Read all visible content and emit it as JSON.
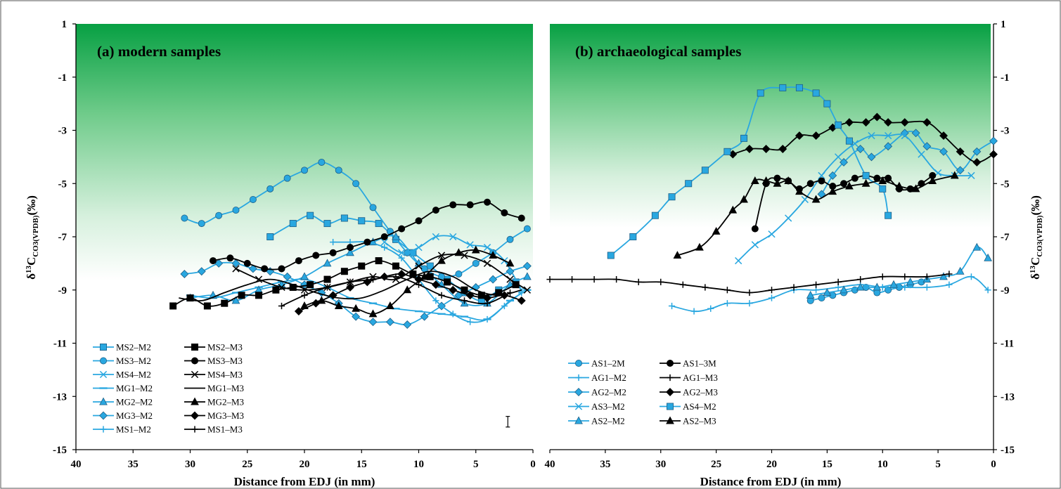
{
  "chart_data": [
    {
      "type": "line",
      "title": "(a) modern samples",
      "xlabel": "Distance from EDJ (in mm)",
      "ylabel": "δ13C CO3(VPDB)(‰)",
      "xlim": [
        40,
        0
      ],
      "ylim": [
        -15,
        1
      ],
      "x_ticks": [
        "40",
        "35",
        "30",
        "25",
        "20",
        "15",
        "10",
        "5",
        "0"
      ],
      "y_ticks": [
        "1",
        "-1",
        "-3",
        "-5",
        "-7",
        "-9",
        "-11",
        "-13",
        "-15"
      ],
      "error_bar": {
        "x": 2.2,
        "y_low": -14.15,
        "y_high": -13.75
      },
      "series": [
        {
          "name": "MS2–M2",
          "color": "#29a7e0",
          "marker": "square",
          "x": [
            23,
            21,
            19.5,
            18,
            16.5,
            15,
            13.5,
            12,
            10.5,
            9,
            7.5,
            6,
            4.5,
            3,
            1.5
          ],
          "y": [
            -7.0,
            -6.5,
            -6.2,
            -6.5,
            -6.3,
            -6.4,
            -6.5,
            -7.1,
            -7.6,
            -8.1,
            -8.6,
            -9.1,
            -9.4,
            -9.0,
            -8.7
          ]
        },
        {
          "name": "MS3–M2",
          "color": "#29a7e0",
          "marker": "circle",
          "x": [
            30.5,
            29,
            27.5,
            26,
            24.5,
            23,
            21.5,
            20,
            18.5,
            17,
            15.5,
            14,
            12.5,
            11,
            9.5,
            8,
            6.5,
            5,
            3.5,
            2,
            0.5
          ],
          "y": [
            -6.3,
            -6.5,
            -6.2,
            -6.0,
            -5.6,
            -5.2,
            -4.8,
            -4.5,
            -4.2,
            -4.5,
            -5.0,
            -5.9,
            -6.8,
            -7.6,
            -8.2,
            -8.5,
            -8.4,
            -8.0,
            -7.6,
            -7.1,
            -6.7
          ]
        },
        {
          "name": "MS4–M2",
          "color": "#29a7e0",
          "marker": "x",
          "x": [
            13,
            11.5,
            10,
            8.5,
            7,
            5.5,
            4,
            2.5,
            1
          ],
          "y": [
            -7.2,
            -7.6,
            -7.4,
            -7.0,
            -7.0,
            -7.3,
            -7.4,
            -7.9,
            -9.0
          ]
        },
        {
          "name": "MG1–M2",
          "color": "#29a7e0",
          "marker": "dash",
          "x": [
            30,
            28,
            26,
            24,
            22,
            20,
            18,
            16,
            14,
            12,
            10,
            8,
            6,
            4,
            2,
            0.5
          ],
          "y": [
            -9.2,
            -9.3,
            -9.1,
            -8.9,
            -8.7,
            -8.6,
            -8.9,
            -9.3,
            -9.5,
            -9.7,
            -9.8,
            -9.9,
            -10.0,
            -10.1,
            -9.4,
            -9.0
          ]
        },
        {
          "name": "MG2–M2",
          "color": "#29a7e0",
          "marker": "triangle",
          "x": [
            30,
            28,
            26,
            24,
            22,
            20,
            18,
            16,
            14,
            12,
            10,
            8,
            6,
            4,
            2,
            0.5
          ],
          "y": [
            -9.3,
            -9.2,
            -9.4,
            -9.0,
            -8.8,
            -8.5,
            -8.0,
            -7.6,
            -7.2,
            -7.0,
            -8.0,
            -8.8,
            -9.5,
            -9.5,
            -8.8,
            -8.5
          ]
        },
        {
          "name": "MG3–M2",
          "color": "#29a7e0",
          "marker": "diamond",
          "x": [
            30.5,
            29,
            27.5,
            26,
            24.5,
            23,
            21.5,
            20,
            18.5,
            17,
            15.5,
            14,
            12.5,
            11,
            9.5,
            8,
            6.5,
            5,
            3.5,
            2,
            0.5
          ],
          "y": [
            -8.4,
            -8.3,
            -8.0,
            -8.0,
            -8.2,
            -8.3,
            -8.5,
            -8.8,
            -9.1,
            -9.5,
            -10.0,
            -10.2,
            -10.2,
            -10.3,
            -10.0,
            -9.6,
            -9.2,
            -8.9,
            -8.6,
            -8.3,
            -8.1
          ]
        },
        {
          "name": "MS1–M2",
          "color": "#29a7e0",
          "marker": "plus",
          "x": [
            17.5,
            16,
            14.5,
            13,
            11.5,
            10,
            8.5,
            7,
            5.5,
            4,
            2.5,
            1
          ],
          "y": [
            -7.2,
            -7.2,
            -7.2,
            -7.4,
            -7.8,
            -8.6,
            -9.4,
            -9.9,
            -10.2,
            -10.1,
            -9.6,
            -9.1
          ]
        },
        {
          "name": "MS2–M3",
          "color": "#000000",
          "marker": "square",
          "x": [
            31.5,
            30,
            28.5,
            27,
            25.5,
            24,
            22.5,
            21,
            19.5,
            18,
            16.5,
            15,
            13.5,
            12,
            10.5,
            9,
            7.5,
            6,
            4.5,
            3,
            1.5
          ],
          "y": [
            -9.6,
            -9.3,
            -9.6,
            -9.5,
            -9.2,
            -9.2,
            -9.0,
            -8.9,
            -8.8,
            -8.6,
            -8.3,
            -8.1,
            -7.9,
            -8.1,
            -8.4,
            -8.5,
            -8.7,
            -9.0,
            -9.2,
            -9.1,
            -8.8
          ]
        },
        {
          "name": "MS3–M3",
          "color": "#000000",
          "marker": "circle",
          "x": [
            28,
            26.5,
            25,
            23.5,
            22,
            20.5,
            19,
            17.5,
            16,
            14.5,
            13,
            11.5,
            10,
            8.5,
            7,
            5.5,
            4,
            2.5,
            1
          ],
          "y": [
            -7.9,
            -7.8,
            -8.0,
            -8.2,
            -8.2,
            -7.9,
            -7.7,
            -7.6,
            -7.4,
            -7.2,
            -7.0,
            -6.7,
            -6.4,
            -6.0,
            -5.8,
            -5.8,
            -5.7,
            -6.1,
            -6.3
          ]
        },
        {
          "name": "MS4–M3",
          "color": "#000000",
          "marker": "x",
          "x": [
            26,
            24,
            22,
            20,
            18,
            16,
            14,
            12,
            10,
            8,
            6,
            4,
            2,
            0.5
          ],
          "y": [
            -8.2,
            -8.6,
            -8.9,
            -9.0,
            -8.9,
            -8.7,
            -8.5,
            -8.6,
            -8.1,
            -7.7,
            -7.7,
            -8.0,
            -8.6,
            -9.0
          ]
        },
        {
          "name": "MG1–M3",
          "color": "#000000",
          "marker": "none",
          "x": [
            31,
            29,
            27,
            25,
            23,
            21,
            19,
            17,
            15,
            13,
            11,
            9,
            7,
            5,
            3,
            1
          ],
          "y": [
            -9.3,
            -9.4,
            -9.1,
            -8.8,
            -8.6,
            -8.8,
            -9.1,
            -9.3,
            -9.3,
            -9.0,
            -8.6,
            -8.3,
            -8.5,
            -9.0,
            -9.2,
            -9.0
          ]
        },
        {
          "name": "MG2–M3",
          "color": "#000000",
          "marker": "triangle",
          "x": [
            20,
            18.5,
            17,
            15.5,
            14,
            12.5,
            11,
            9.5,
            8,
            6.5,
            5,
            3.5,
            2
          ],
          "y": [
            -9.6,
            -9.4,
            -9.6,
            -9.7,
            -9.9,
            -9.6,
            -9.0,
            -8.5,
            -7.9,
            -7.6,
            -7.5,
            -7.7,
            -8.0
          ]
        },
        {
          "name": "MG3–M3",
          "color": "#000000",
          "marker": "diamond",
          "x": [
            20.5,
            19,
            17.5,
            16,
            14.5,
            13,
            11.5,
            10,
            8.5,
            7,
            5.5,
            4,
            2.5,
            1
          ],
          "y": [
            -9.8,
            -9.5,
            -9.2,
            -8.9,
            -8.7,
            -8.5,
            -8.4,
            -8.6,
            -8.8,
            -9.0,
            -9.2,
            -9.3,
            -9.2,
            -9.4
          ]
        },
        {
          "name": "MS1–M3",
          "color": "#000000",
          "marker": "plus",
          "x": [
            22,
            20,
            18,
            16,
            14,
            12,
            10,
            8,
            6,
            4,
            2
          ],
          "y": [
            -9.6,
            -9.2,
            -8.9,
            -8.7,
            -8.6,
            -8.5,
            -8.8,
            -9.2,
            -9.4,
            -9.5,
            -9.1
          ]
        }
      ]
    },
    {
      "type": "line",
      "title": "(b) archaeological samples",
      "xlabel": "Distance from EDJ (in mm)",
      "ylabel": "δ13C CO3(VPDB)(‰)",
      "xlim": [
        40,
        0
      ],
      "ylim": [
        -15,
        1
      ],
      "x_ticks": [
        "40",
        "35",
        "30",
        "25",
        "20",
        "15",
        "10",
        "5",
        "0"
      ],
      "y_ticks": [
        "1",
        "-1",
        "-3",
        "-5",
        "-7",
        "-9",
        "-11",
        "-13",
        "-15"
      ],
      "series": [
        {
          "name": "AS1–2M",
          "color": "#29a7e0",
          "marker": "circle",
          "x": [
            16.5,
            15.5,
            14.5,
            13.5,
            12.5,
            11.5,
            10.5,
            9.5,
            8.5,
            7.5,
            6.5
          ],
          "y": [
            -9.4,
            -9.3,
            -9.2,
            -9.1,
            -9.0,
            -8.9,
            -9.1,
            -9.0,
            -8.9,
            -8.8,
            -8.7
          ]
        },
        {
          "name": "AG1–M2",
          "color": "#29a7e0",
          "marker": "plus",
          "x": [
            29,
            27,
            25.5,
            24,
            22,
            20,
            18,
            16,
            14,
            12,
            10,
            8,
            6,
            4,
            2,
            0.5
          ],
          "y": [
            -9.6,
            -9.8,
            -9.7,
            -9.5,
            -9.5,
            -9.3,
            -9.0,
            -9.0,
            -8.9,
            -8.8,
            -8.9,
            -8.9,
            -8.9,
            -8.8,
            -8.5,
            -9.0
          ]
        },
        {
          "name": "AG2–M2",
          "color": "#29a7e0",
          "marker": "diamond",
          "x": [
            15.5,
            14.5,
            13.5,
            12,
            11,
            9.5,
            8,
            7,
            6,
            4.5,
            3,
            1.5,
            0
          ],
          "y": [
            -5.4,
            -4.7,
            -4.2,
            -3.7,
            -4.0,
            -3.6,
            -3.1,
            -3.1,
            -3.6,
            -3.8,
            -4.5,
            -3.8,
            -3.4
          ]
        },
        {
          "name": "AS3–M2",
          "color": "#29a7e0",
          "marker": "x",
          "x": [
            23,
            21.5,
            20,
            18.5,
            17,
            15.5,
            14,
            12.5,
            11,
            9.5,
            8,
            6.5,
            5,
            3.5,
            2
          ],
          "y": [
            -7.9,
            -7.3,
            -6.9,
            -6.3,
            -5.6,
            -4.7,
            -4.0,
            -3.5,
            -3.2,
            -3.2,
            -3.2,
            -3.9,
            -4.6,
            -4.7,
            -4.7
          ]
        },
        {
          "name": "AS2–M2",
          "color": "#29a7e0",
          "marker": "triangle",
          "x": [
            16.5,
            15,
            13.5,
            12,
            10.5,
            9,
            7.5,
            6,
            4.5,
            3,
            1.5,
            0.5
          ],
          "y": [
            -9.2,
            -9.1,
            -9.0,
            -8.9,
            -8.9,
            -8.8,
            -8.7,
            -8.6,
            -8.5,
            -8.3,
            -7.4,
            -7.8
          ]
        },
        {
          "name": "AS1–3M",
          "color": "#000000",
          "marker": "circle",
          "x": [
            21.5,
            20.5,
            19.5,
            18.5,
            17.5,
            16.5,
            15.5,
            14.5,
            13.5,
            12.5,
            11.5,
            10.5,
            9.5,
            8.5,
            7.5,
            6.5,
            5.5
          ],
          "y": [
            -6.7,
            -5.0,
            -4.8,
            -4.9,
            -5.2,
            -5.0,
            -4.9,
            -5.1,
            -5.0,
            -4.8,
            -4.7,
            -4.8,
            -4.8,
            -5.2,
            -5.2,
            -5.0,
            -4.7
          ]
        },
        {
          "name": "AG1–M3",
          "color": "#000000",
          "marker": "plus",
          "x": [
            40,
            38,
            36,
            34,
            32,
            30,
            28,
            26,
            24,
            22,
            20,
            18,
            16,
            14,
            12,
            10,
            8,
            6,
            4
          ],
          "y": [
            -8.6,
            -8.6,
            -8.6,
            -8.6,
            -8.7,
            -8.7,
            -8.8,
            -8.9,
            -9.0,
            -9.1,
            -9.0,
            -8.9,
            -8.8,
            -8.7,
            -8.6,
            -8.5,
            -8.5,
            -8.5,
            -8.4
          ]
        },
        {
          "name": "AG2–M3",
          "color": "#000000",
          "marker": "diamond",
          "x": [
            23.5,
            22,
            20.5,
            19,
            17.5,
            16,
            14.5,
            13,
            11.5,
            10.5,
            9.5,
            8,
            6,
            4.5,
            3,
            1.5,
            0
          ],
          "y": [
            -3.9,
            -3.7,
            -3.7,
            -3.7,
            -3.2,
            -3.2,
            -2.9,
            -2.7,
            -2.7,
            -2.5,
            -2.7,
            -2.7,
            -2.7,
            -3.2,
            -3.8,
            -4.2,
            -3.9
          ]
        },
        {
          "name": "AS4–M2",
          "color": "#29a7e0",
          "marker": "square",
          "x": [
            34.5,
            32.5,
            30.5,
            29,
            27.5,
            26,
            24,
            22.5,
            21,
            19,
            17.5,
            16,
            15,
            14,
            13,
            11.5,
            10,
            9.5
          ],
          "y": [
            -7.7,
            -7.0,
            -6.2,
            -5.5,
            -5.0,
            -4.5,
            -3.8,
            -3.3,
            -1.6,
            -1.4,
            -1.4,
            -1.6,
            -2.0,
            -2.8,
            -3.4,
            -4.7,
            -5.2,
            -6.2
          ]
        },
        {
          "name": "AS2–M3",
          "color": "#000000",
          "marker": "triangle",
          "x": [
            28.5,
            26.5,
            25,
            23.5,
            22.5,
            21.5,
            20.5,
            19.5,
            18.5,
            17.5,
            16,
            14.5,
            13,
            11.5,
            10,
            8.5,
            7,
            5.5,
            3.5
          ],
          "y": [
            -7.7,
            -7.4,
            -6.8,
            -6.0,
            -5.6,
            -4.9,
            -4.9,
            -5.0,
            -4.9,
            -5.3,
            -5.6,
            -5.3,
            -5.1,
            -5.0,
            -4.9,
            -5.1,
            -5.2,
            -4.9,
            -4.7
          ]
        }
      ]
    }
  ]
}
